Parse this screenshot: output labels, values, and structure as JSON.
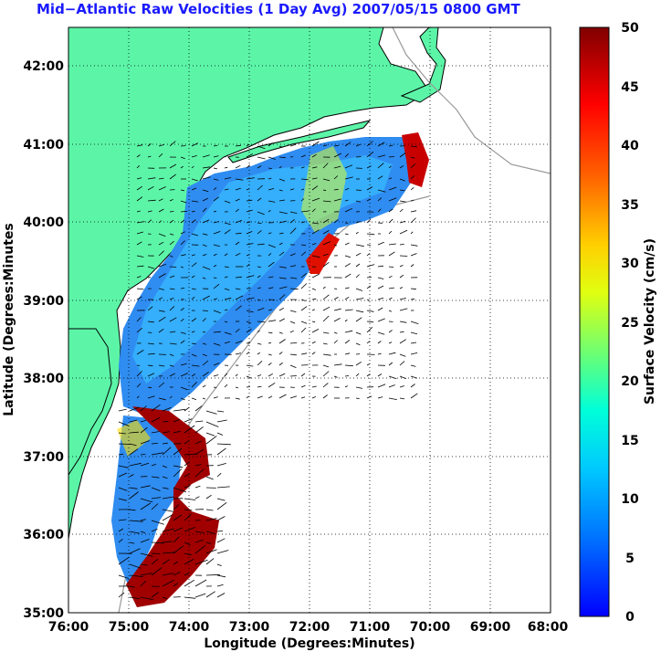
{
  "title": "Mid−Atlantic Raw Velocities (1 Day Avg) 2007/05/15 0800 GMT",
  "map": {
    "xlabel": "Longitude (Degrees:Minutes)",
    "ylabel": "Latitude (Degrees:Minutes",
    "lon_ticks": [
      "76:00",
      "75:00",
      "74:00",
      "73:00",
      "72:00",
      "71:00",
      "70:00",
      "69:00",
      "68:00"
    ],
    "lat_ticks": [
      "35:00",
      "36:00",
      "37:00",
      "38:00",
      "39:00",
      "40:00",
      "41:00",
      "42:00"
    ],
    "land_color": "#5cf5a8",
    "vector_color": "#000000"
  },
  "colorbar": {
    "label": "Surface Velocity (cm/s)",
    "ticks": [
      "0",
      "5",
      "10",
      "15",
      "20",
      "25",
      "30",
      "35",
      "40",
      "45",
      "50"
    ],
    "min": 0,
    "max": 50
  }
}
